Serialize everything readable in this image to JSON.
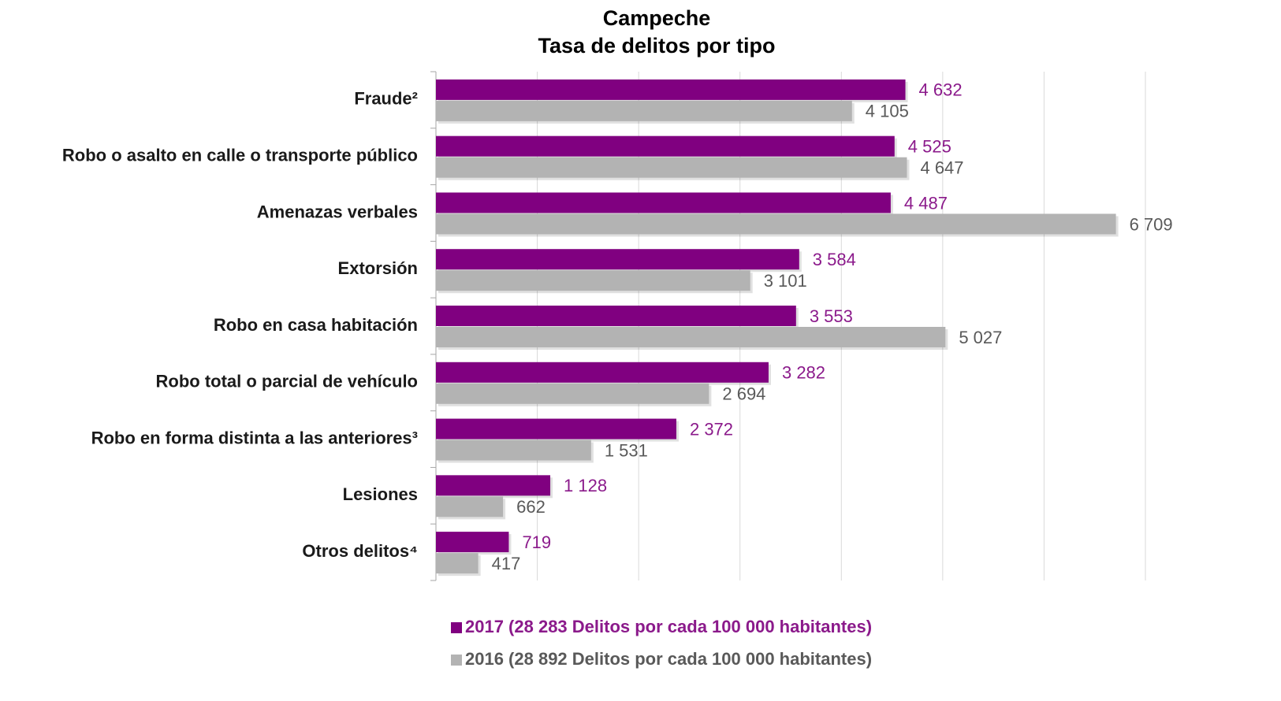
{
  "chart_data": {
    "type": "barh",
    "title": "Campeche",
    "subtitle": "Tasa de delitos por tipo",
    "categories": [
      "Fraude²",
      "Robo o asalto en calle o transporte público",
      "Amenazas verbales",
      "Extorsión",
      "Robo en casa habitación",
      "Robo total o parcial de vehículo",
      "Robo en forma distinta a las anteriores³",
      "Lesiones",
      "Otros delitos⁴"
    ],
    "series": [
      {
        "name": "2017 (28 283 Delitos por cada 100 000 habitantes)",
        "color": "#800080",
        "label_color": "#8b1a8b",
        "values": [
          4632,
          4525,
          4487,
          3584,
          3553,
          3282,
          2372,
          1128,
          719
        ],
        "value_labels": [
          "4 632",
          "4 525",
          "4 487",
          "3 584",
          "3 553",
          "3 282",
          "2 372",
          "1 128",
          "719"
        ]
      },
      {
        "name": "2016 (28 892 Delitos por cada 100 000 habitantes)",
        "color": "#b3b3b3",
        "label_color": "#595959",
        "values": [
          4105,
          4647,
          6709,
          3101,
          5027,
          2694,
          1531,
          662,
          417
        ],
        "value_labels": [
          "4 105",
          "4 647",
          "6 709",
          "3 101",
          "5 027",
          "2 694",
          "1 531",
          "662",
          "417"
        ]
      }
    ],
    "xlim": [
      0,
      7000
    ],
    "xticks": [
      0,
      1000,
      2000,
      3000,
      4000,
      5000,
      6000,
      7000
    ],
    "grid": true
  }
}
